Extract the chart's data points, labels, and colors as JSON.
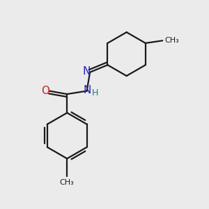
{
  "background_color": "#ebebeb",
  "bond_color": "#1a1a1a",
  "N_color": "#2222cc",
  "O_color": "#cc2222",
  "H_color": "#337777",
  "linewidth": 1.6,
  "figsize": [
    3.0,
    3.0
  ],
  "dpi": 100,
  "xlim": [
    0,
    10
  ],
  "ylim": [
    0,
    10
  ]
}
